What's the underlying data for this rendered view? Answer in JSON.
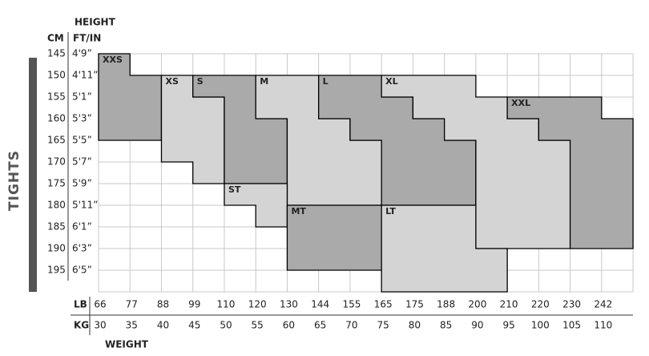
{
  "header": {
    "height": "HEIGHT",
    "cm": "CM",
    "ftin": "FT/IN",
    "lb": "LB",
    "kg": "KG",
    "weight": "WEIGHT",
    "side": "TIGHTS"
  },
  "heights": [
    {
      "cm": "145",
      "ftin": "4'9”"
    },
    {
      "cm": "150",
      "ftin": "4'11”"
    },
    {
      "cm": "155",
      "ftin": "5'1”"
    },
    {
      "cm": "160",
      "ftin": "5'3”"
    },
    {
      "cm": "165",
      "ftin": "5'5”"
    },
    {
      "cm": "170",
      "ftin": "5'7”"
    },
    {
      "cm": "175",
      "ftin": "5'9”"
    },
    {
      "cm": "180",
      "ftin": "5'11”"
    },
    {
      "cm": "185",
      "ftin": "6'1”"
    },
    {
      "cm": "190",
      "ftin": "6'3”"
    },
    {
      "cm": "195",
      "ftin": "6'5”"
    }
  ],
  "weights": [
    {
      "lb": "66",
      "kg": "30"
    },
    {
      "lb": "77",
      "kg": "35"
    },
    {
      "lb": "88",
      "kg": "40"
    },
    {
      "lb": "99",
      "kg": "45"
    },
    {
      "lb": "110",
      "kg": "50"
    },
    {
      "lb": "120",
      "kg": "55"
    },
    {
      "lb": "130",
      "kg": "60"
    },
    {
      "lb": "144",
      "kg": "65"
    },
    {
      "lb": "155",
      "kg": "70"
    },
    {
      "lb": "165",
      "kg": "75"
    },
    {
      "lb": "175",
      "kg": "80"
    },
    {
      "lb": "188",
      "kg": "85"
    },
    {
      "lb": "200",
      "kg": "90"
    },
    {
      "lb": "210",
      "kg": "95"
    },
    {
      "lb": "220",
      "kg": "100"
    },
    {
      "lb": "230",
      "kg": "105"
    },
    {
      "lb": "242",
      "kg": "110"
    }
  ],
  "sizes": [
    "XXS",
    "XS",
    "S",
    "M",
    "L",
    "XL",
    "XXL",
    "ST",
    "MT",
    "LT"
  ]
}
